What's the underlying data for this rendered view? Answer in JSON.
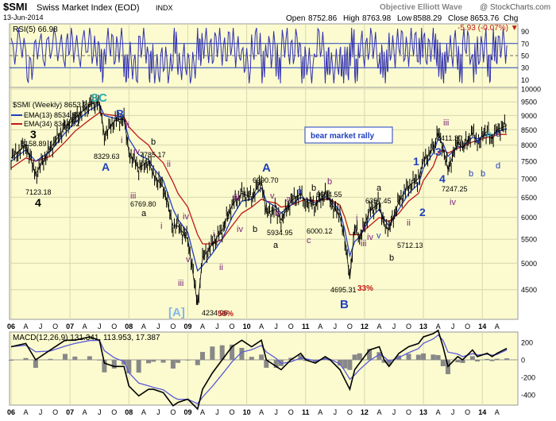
{
  "header": {
    "symbol": "$SMI",
    "name": "Swiss Market Index (EOD)",
    "exchange": "INDX",
    "date": "13-Jun-2014",
    "open_label": "Open",
    "open": "8752.86",
    "high_label": "High",
    "high": "8763.98",
    "low_label": "Low",
    "low": "8588.29",
    "close_label": "Close",
    "close": "8653.76",
    "chg_label": "Chg",
    "chg": "-5.93 (-0.07%)",
    "chg_arrow": "▼",
    "credit": "Objective Elliott Wave",
    "copyright": "@ StockCharts.com"
  },
  "colors": {
    "panel_bg": "#fbfbcf",
    "price": "#000000",
    "ema13": "#1f3fbf",
    "ema34": "#c01818",
    "rsi": "#3030b0",
    "macd_signal": "#5a5ad8",
    "hist": "#888888",
    "annot_blue": "#1f3fbf",
    "annot_purple": "#7a1f7a",
    "annot_red": "#c01818",
    "annot_cyan": "#2aaeae",
    "annot_lightblue": "#7fb7ea"
  },
  "rsi_panel": {
    "label": "RSI(5) 66.98",
    "ticks": [
      "90",
      "70",
      "50",
      "30",
      "10"
    ]
  },
  "price_panel": {
    "legend_title": "$SMI (Weekly) 8653.76",
    "legend_ema13": "EMA(13) 8534.53",
    "legend_ema34": "EMA(34) 8344.92",
    "ticks": [
      "10000",
      "9500",
      "9000",
      "8500",
      "8000",
      "7500",
      "7000",
      "6500",
      "6000",
      "5500",
      "5000",
      "4500"
    ],
    "box_label": "bear market rally"
  },
  "macd_panel": {
    "label": "MACD(12,26,9) 131.341, 113.953, 17.387",
    "ticks": [
      "200",
      "0",
      "-200",
      "-400"
    ]
  },
  "x_axis_labels": [
    "06",
    "A",
    "J",
    "O",
    "07",
    "A",
    "J",
    "O",
    "08",
    "A",
    "J",
    "O",
    "09",
    "A",
    "J",
    "O",
    "10",
    "A",
    "J",
    "O",
    "11",
    "A",
    "J",
    "O",
    "12",
    "A",
    "J",
    "O",
    "13",
    "A",
    "J",
    "O",
    "14",
    "A"
  ],
  "annotations": {
    "sc": "SC",
    "big_a_bracket": "[A]",
    "pct56": "56%",
    "pct33": "33%",
    "p8158": "8158.89",
    "p7123": "7123.18",
    "p8329": "8329.63",
    "p7785": "7785.17",
    "p6769": "6769.80",
    "p4234": "4234.96",
    "p6990": "6990.70",
    "p5934": "5934.95",
    "p6000": "6000.12",
    "p6604": "6604.55",
    "p4695": "4695.31",
    "p6357": "6357.45",
    "p5712": "5712.13",
    "p8411": "8411.30",
    "p7247": "7247.25",
    "w3": "3",
    "w4": "4",
    "wA1": "A",
    "wB1": "B",
    "wi_a": "i",
    "wii_a": "ii",
    "wb_a": "b",
    "wiv_a": "iv",
    "wii_b": "ii",
    "wiii_b": "iii",
    "wa_b": "a",
    "wi_b": "i",
    "wiv_b": "iv",
    "wiii_c": "iii",
    "wv_c": "v",
    "wi_d": "i",
    "wii_d": "ii",
    "wA2": "A",
    "wiii_e": "iii",
    "wiv_e": "iv",
    "wv_e": "v",
    "wb_e": "b",
    "wa_e": "a",
    "wb_f": "b",
    "wa_f1": "a",
    "wa_f2": "a",
    "wc_f": "c",
    "wb_g": "b",
    "wb_g2": "b",
    "wa_g": "a",
    "wB2": "B",
    "wi_h": "i",
    "wii_h": "ii",
    "wiii_h": "iii",
    "wiv_h": "iv",
    "wv_h": "v",
    "wa_h": "a",
    "wb_h": "b",
    "w1": "1",
    "w2": "2",
    "w3b": "3",
    "w4b": "4",
    "wi_k": "i",
    "wii_k": "ii",
    "wiii_k": "iii",
    "wiv_k": "iv",
    "wa_m": "a",
    "wb_m": "b",
    "wa_m2": "a",
    "wc_m": "c",
    "wb_m2": "b",
    "wd_m": "d"
  },
  "chart_data": {
    "type": "line",
    "title": "$SMI Swiss Market Index (EOD) INDX",
    "subtitle": "13-Jun-2014",
    "xlabel": "",
    "ylabel": "",
    "x": [
      "2006-01",
      "2006-04",
      "2006-06",
      "2006-09",
      "2006-12",
      "2007-02",
      "2007-05",
      "2007-07",
      "2007-08",
      "2007-10",
      "2007-12",
      "2008-01",
      "2008-03",
      "2008-05",
      "2008-06",
      "2008-08",
      "2008-10",
      "2008-11",
      "2009-01",
      "2009-03",
      "2009-04",
      "2009-06",
      "2009-08",
      "2009-10",
      "2009-12",
      "2010-02",
      "2010-04",
      "2010-05",
      "2010-07",
      "2010-08",
      "2010-10",
      "2010-12",
      "2011-01",
      "2011-03",
      "2011-05",
      "2011-06",
      "2011-08",
      "2011-09",
      "2011-10",
      "2011-11",
      "2011-12",
      "2012-02",
      "2012-04",
      "2012-05",
      "2012-06",
      "2012-08",
      "2012-10",
      "2012-12",
      "2013-01",
      "2013-03",
      "2013-04",
      "2013-05",
      "2013-06",
      "2013-08",
      "2013-09",
      "2013-11",
      "2013-12",
      "2014-02",
      "2014-03",
      "2014-04",
      "2014-06"
    ],
    "series": [
      {
        "name": "$SMI (Weekly)",
        "values": [
          7600,
          8000,
          7123,
          7900,
          8600,
          8900,
          9400,
          9500,
          8329,
          8800,
          8900,
          7785,
          7300,
          7500,
          7100,
          6769,
          5800,
          5800,
          5500,
          4235,
          5100,
          5400,
          5700,
          6300,
          6600,
          6500,
          6950,
          6100,
          6200,
          5935,
          6400,
          6600,
          6400,
          6300,
          6604,
          6400,
          6000,
          5500,
          4695,
          5800,
          5500,
          6150,
          6357,
          5800,
          5712,
          6400,
          6800,
          7000,
          7500,
          7900,
          8411,
          7900,
          7247,
          8100,
          7900,
          8400,
          8100,
          8450,
          8200,
          8500,
          8654
        ]
      },
      {
        "name": "EMA(13)",
        "values": [
          7500,
          7850,
          7500,
          7800,
          8400,
          8750,
          9200,
          9400,
          9000,
          8900,
          8850,
          8200,
          7700,
          7550,
          7300,
          6950,
          6200,
          5950,
          5650,
          4850,
          4950,
          5200,
          5500,
          6000,
          6400,
          6450,
          6750,
          6400,
          6250,
          6100,
          6300,
          6500,
          6450,
          6350,
          6500,
          6450,
          6150,
          5700,
          5150,
          5450,
          5550,
          5950,
          6200,
          5950,
          5800,
          6200,
          6600,
          6850,
          7300,
          7750,
          8200,
          8050,
          7650,
          7950,
          7950,
          8250,
          8200,
          8350,
          8300,
          8450,
          8535
        ]
      },
      {
        "name": "EMA(34)",
        "values": [
          7300,
          7600,
          7500,
          7650,
          8100,
          8450,
          8850,
          9100,
          9050,
          9000,
          8950,
          8600,
          8250,
          8000,
          7750,
          7450,
          6900,
          6600,
          6250,
          5600,
          5400,
          5400,
          5500,
          5800,
          6100,
          6250,
          6450,
          6400,
          6350,
          6250,
          6300,
          6400,
          6450,
          6400,
          6450,
          6450,
          6300,
          6000,
          5600,
          5600,
          5600,
          5800,
          6000,
          5950,
          5900,
          6100,
          6400,
          6600,
          6950,
          7350,
          7750,
          7850,
          7750,
          7900,
          7950,
          8100,
          8150,
          8250,
          8250,
          8350,
          8345
        ]
      }
    ],
    "ylim": [
      4000,
      10000
    ],
    "yscale": "log",
    "grid": true,
    "rsi": {
      "label": "RSI(5)",
      "last": 66.98,
      "ylim": [
        0,
        100
      ],
      "levels": [
        30,
        70
      ]
    },
    "macd": {
      "params": "12,26,9",
      "macd": 131.341,
      "signal": 113.953,
      "histogram": 17.387,
      "ylim": [
        -500,
        300
      ]
    }
  }
}
